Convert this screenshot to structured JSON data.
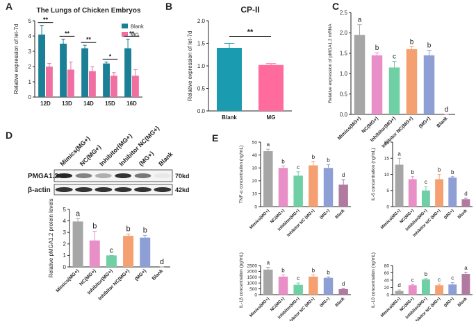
{
  "chart_data": [
    {
      "type": "bar",
      "panel": "A",
      "title": "The Lungs of Chicken Embryos",
      "ylabel": "Relative expression of let-7d",
      "categories": [
        "12D",
        "13D",
        "14D",
        "15D",
        "16D"
      ],
      "series": [
        {
          "name": "Blank",
          "color": "#1b7f95",
          "values": [
            4.1,
            3.5,
            3.2,
            2.2,
            3.2
          ],
          "errors": [
            0.6,
            0.3,
            0.2,
            0.1,
            0.6
          ]
        },
        {
          "name": "MG",
          "color": "#f06fa0",
          "values": [
            2.0,
            1.8,
            1.7,
            1.4,
            1.4
          ],
          "errors": [
            0.2,
            0.5,
            0.3,
            0.2,
            0.4
          ]
        }
      ],
      "significance": [
        "**",
        "**",
        "**",
        "*",
        "**"
      ],
      "ylim": [
        0,
        5
      ],
      "yticks": [
        0,
        1,
        2,
        3,
        4,
        5
      ]
    },
    {
      "type": "bar",
      "panel": "B",
      "title": "CP-II",
      "ylabel": "Relative expression of let-7d",
      "categories": [
        "Blank",
        "MG"
      ],
      "values": [
        1.4,
        1.02
      ],
      "errors": [
        0.1,
        0.03
      ],
      "colors": [
        "#1a9bb0",
        "#ff6b9d"
      ],
      "significance": "**",
      "ylim": [
        0,
        2
      ],
      "yticks": [
        {
          "value": 0,
          "label": "0.0"
        },
        0.5,
        {
          "value": 1,
          "label": "1.0"
        },
        1.5,
        {
          "value": 2,
          "label": "2.0"
        }
      ]
    },
    {
      "type": "bar",
      "panel": "C",
      "ylabel": "Relative expression of pMGA1.2 mRNA",
      "categories": [
        "Mimics(MG+)",
        "NC(MG+)",
        "Inhibitor(MG+)",
        "Inhibitor NC(MG+)",
        "(MG+)",
        "Blank"
      ],
      "values": [
        1.95,
        1.45,
        1.15,
        1.6,
        1.45,
        0
      ],
      "errors": [
        0.25,
        0.06,
        0.15,
        0.06,
        0.12,
        0
      ],
      "colors": [
        "#a6a6a6",
        "#e88fc7",
        "#6fcfa5",
        "#f4a071",
        "#8e9fd6",
        "#b07aa1"
      ],
      "letters": [
        "a",
        "b",
        "c",
        "b",
        "b",
        "d"
      ],
      "ylim": [
        0,
        2.5
      ],
      "yticks": [
        {
          "value": 0,
          "label": "0.0"
        },
        0.5,
        {
          "value": 1,
          "label": "1.0"
        },
        1.5,
        {
          "value": 2,
          "label": "2.0"
        },
        2.5
      ]
    },
    {
      "type": "bar",
      "panel": "D",
      "ylabel": "Relative pMGA1.2 protein levels",
      "categories": [
        "Mimics(MG+)",
        "NC(MG+)",
        "Inhibitor(MG+)",
        "Inhibitor NC(MG+)",
        "(MG+)",
        "Blank"
      ],
      "values": [
        3.95,
        2.3,
        1.0,
        2.7,
        2.55,
        0
      ],
      "errors": [
        0.25,
        0.8,
        0,
        0.15,
        0.2,
        0
      ],
      "colors": [
        "#a6a6a6",
        "#e88fc7",
        "#6fcfa5",
        "#f4a071",
        "#8e9fd6",
        "#b07aa1"
      ],
      "letters": [
        "a",
        "b",
        "c",
        "b",
        "b",
        "d"
      ],
      "ylim": [
        0,
        5
      ],
      "yticks": [
        0,
        1,
        2,
        3,
        4,
        5
      ]
    },
    {
      "type": "bar",
      "panel": "E",
      "ylabel": "TNF-α concentration (ng/mL)",
      "categories": [
        "Mimics(MG+)",
        "NC(MG+)",
        "Inhibitor(MG+)",
        "Inhibitor NC (MG+)",
        "(MG+)",
        "Blank"
      ],
      "values": [
        43,
        30,
        24,
        32,
        30,
        17
      ],
      "errors": [
        1.5,
        1.5,
        3,
        3,
        2.5,
        4
      ],
      "colors": [
        "#a6a6a6",
        "#e88fc7",
        "#6fcfa5",
        "#f4a071",
        "#8e9fd6",
        "#b07aa1"
      ],
      "letters": [
        "a",
        "b",
        "c",
        "b",
        "b",
        "d"
      ],
      "ylim": [
        0,
        50
      ],
      "yticks": [
        0,
        10,
        20,
        30,
        40,
        50
      ]
    },
    {
      "type": "bar",
      "ylabel": "IL-6 concentration (ng/mL)",
      "categories": [
        "Mimics(MG+)",
        "NC(MG+)",
        "Inhibitor(MG+)",
        "Inhibitor NC (MG+)",
        "(MG+)",
        "Blank"
      ],
      "values": [
        13,
        8.5,
        5,
        8.5,
        9,
        2.3
      ],
      "errors": [
        2,
        0.8,
        1.2,
        1.5,
        0.3,
        0.3
      ],
      "colors": [
        "#a6a6a6",
        "#e88fc7",
        "#6fcfa5",
        "#f4a071",
        "#8e9fd6",
        "#b07aa1"
      ],
      "letters": [
        "a",
        "b",
        "c",
        "b",
        "b",
        "d"
      ],
      "ylim": [
        0,
        20
      ],
      "yticks": [
        0,
        5,
        10,
        15,
        20
      ]
    },
    {
      "type": "bar",
      "ylabel": "IL-1β concentration (pg/mL)",
      "categories": [
        "Mimics(MG+)",
        "NC(MG+)",
        "Inhibitor(MG+)",
        "Inhibitor NC (MG+)",
        "(MG+)",
        "Blank"
      ],
      "values": [
        2150,
        1550,
        850,
        1550,
        1450,
        480
      ],
      "errors": [
        200,
        150,
        150,
        150,
        80,
        50
      ],
      "colors": [
        "#a6a6a6",
        "#e88fc7",
        "#6fcfa5",
        "#f4a071",
        "#8e9fd6",
        "#b07aa1"
      ],
      "letters": [
        "a",
        "b",
        "c",
        "b",
        "b",
        "d"
      ],
      "ylim": [
        0,
        2500
      ],
      "yticks": [
        0,
        500,
        1000,
        1500,
        2000,
        2500
      ]
    },
    {
      "type": "bar",
      "ylabel": "IL-10 concentration (ng/mL)",
      "categories": [
        "Mimics(MG+)",
        "NC(MG+)",
        "Inhibitor(MG+)",
        "Inhibitor NC (MG+)",
        "(MG+)",
        "Blank"
      ],
      "values": [
        10,
        26,
        42,
        26,
        28,
        57
      ],
      "errors": [
        3,
        2,
        2,
        3,
        5,
        4
      ],
      "colors": [
        "#a6a6a6",
        "#e88fc7",
        "#6fcfa5",
        "#f4a071",
        "#8e9fd6",
        "#b07aa1"
      ],
      "letters": [
        "d",
        "c",
        "b",
        "c",
        "c",
        "a"
      ],
      "ylim": [
        0,
        80
      ],
      "yticks": [
        0,
        20,
        40,
        60,
        80
      ]
    }
  ],
  "blot": {
    "columns": [
      "Mimics(MG+)",
      "NC(MG+)",
      "Inhibitor(MG+)",
      "Inhibitor NC(MG+)",
      "(MG+)",
      "Blank"
    ],
    "rows": [
      "PMGA1.2",
      "β-actin"
    ],
    "sizes": [
      "70kd",
      "42kd"
    ]
  }
}
